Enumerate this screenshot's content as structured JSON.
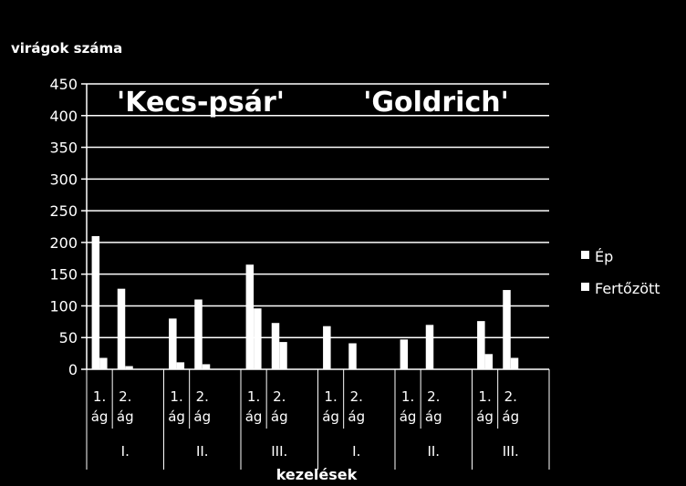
{
  "chart_data": {
    "type": "bar",
    "ylabel": "virágok száma",
    "xlabel": "kezelések",
    "ylim": [
      0,
      450
    ],
    "yticks": [
      0,
      50,
      100,
      150,
      200,
      250,
      300,
      350,
      400,
      450
    ],
    "grid": true,
    "legend_position": "right",
    "groups": [
      {
        "variety": "'Kecs-psár'",
        "treatments": [
          "I.",
          "II.",
          "III."
        ]
      },
      {
        "variety": "'Goldrich'",
        "treatments": [
          "I.",
          "II.",
          "III."
        ]
      }
    ],
    "categories": [
      {
        "branch": "1. ág",
        "treatment": "I."
      },
      {
        "branch": "2. ág",
        "treatment": "I."
      },
      {
        "branch": "1. ág",
        "treatment": "II."
      },
      {
        "branch": "2. ág",
        "treatment": "II."
      },
      {
        "branch": "1. ág",
        "treatment": "III."
      },
      {
        "branch": "2. ág",
        "treatment": "III."
      },
      {
        "branch": "1. ág",
        "treatment": "I."
      },
      {
        "branch": "2. ág",
        "treatment": "I."
      },
      {
        "branch": "1. ág",
        "treatment": "II."
      },
      {
        "branch": "2. ág",
        "treatment": "II."
      },
      {
        "branch": "1. ág",
        "treatment": "III."
      },
      {
        "branch": "2. ág",
        "treatment": "III."
      }
    ],
    "series": [
      {
        "name": "Ép",
        "values": [
          210,
          127,
          80,
          110,
          165,
          73,
          68,
          41,
          47,
          70,
          76,
          125
        ]
      },
      {
        "name": "Fertőzött",
        "values": [
          18,
          5,
          11,
          8,
          96,
          43,
          0,
          0,
          0,
          0,
          24,
          18
        ]
      }
    ],
    "colors": {
      "background": "#000000",
      "bars": "#ffffff",
      "text": "#ffffff",
      "lines": "#ffffff"
    }
  }
}
